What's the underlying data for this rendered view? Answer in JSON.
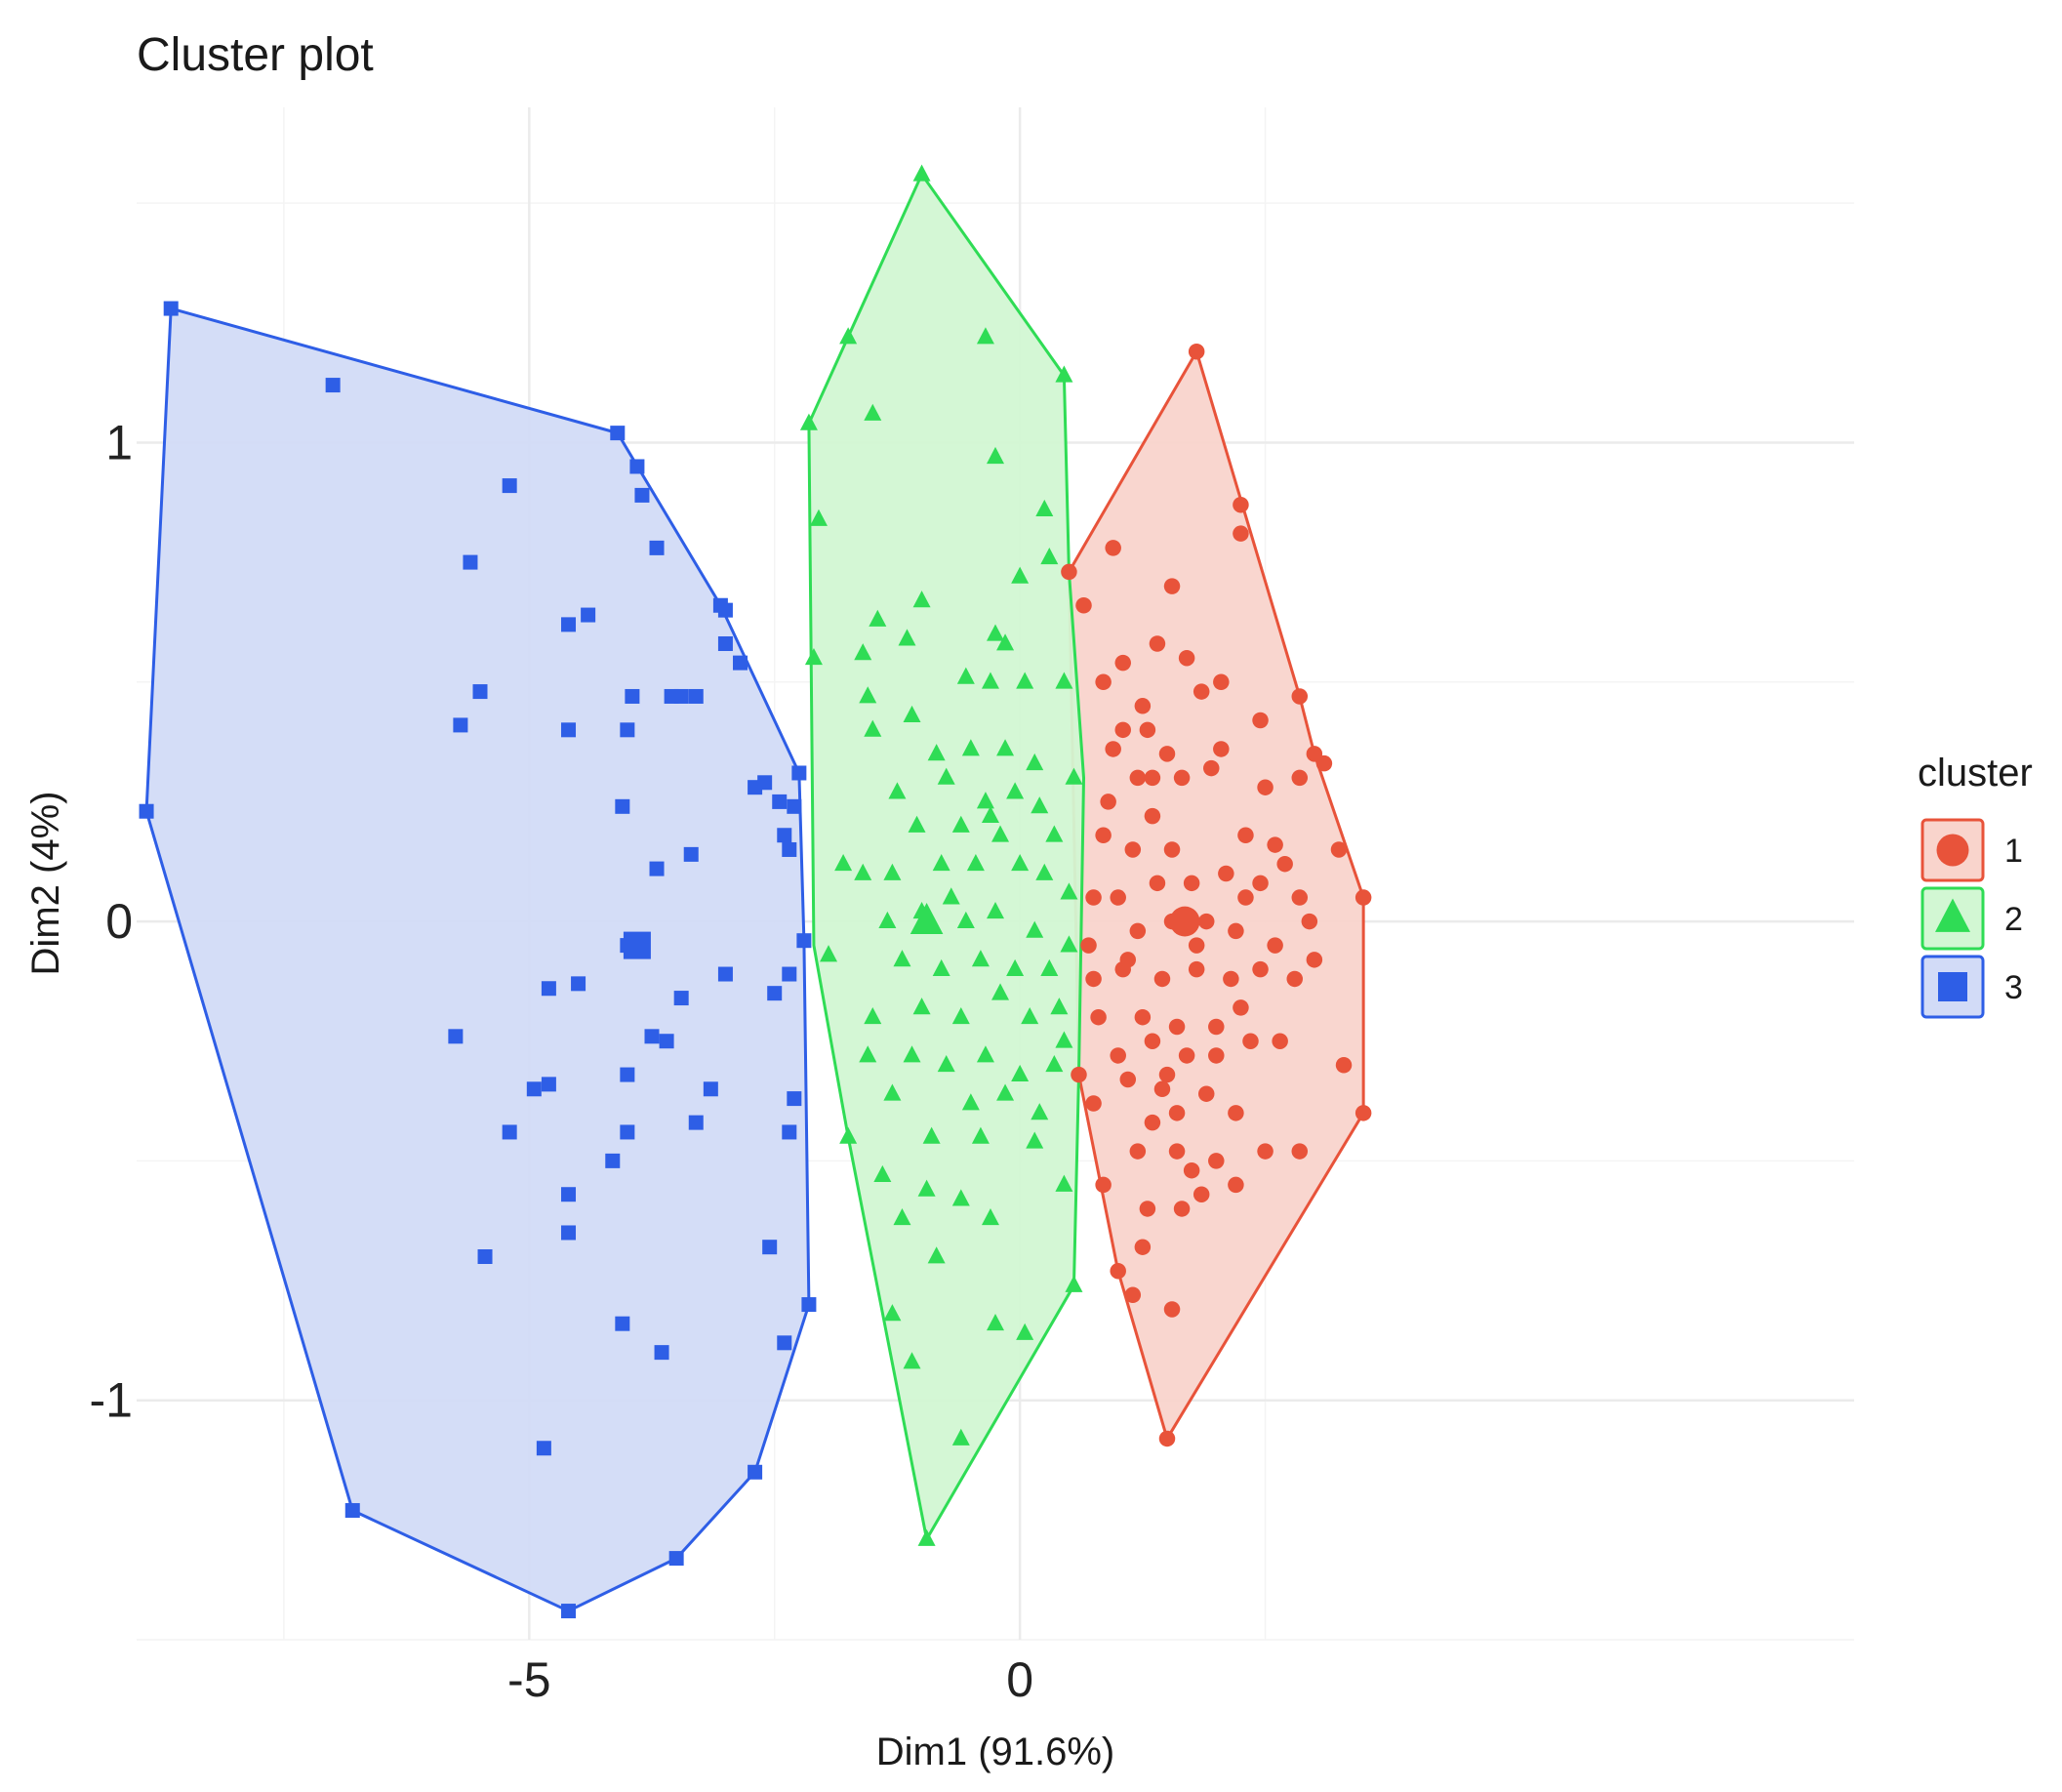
{
  "chart_data": {
    "type": "scatter",
    "title": "Cluster plot",
    "xlabel": "Dim1 (91.6%)",
    "ylabel": "Dim2 (4%)",
    "xlim": [
      -9,
      8.5
    ],
    "ylim": [
      -1.5,
      1.7
    ],
    "x_ticks": [
      {
        "value": -5,
        "label": "-5"
      },
      {
        "value": 0,
        "label": "0"
      }
    ],
    "y_ticks": [
      {
        "value": 1,
        "label": "1"
      },
      {
        "value": 0,
        "label": "0"
      },
      {
        "value": -1,
        "label": "-1"
      }
    ],
    "x_minor_ticks": [
      -7.5,
      -2.5,
      2.5
    ],
    "y_minor_ticks": [
      1.5,
      0.5,
      -0.5,
      -1.5
    ],
    "grid": true,
    "legend_position": "right",
    "legend_title": "cluster",
    "series": [
      {
        "name": "1",
        "shape": "circle",
        "color": "#f8766d",
        "stroke": "#e8533a",
        "fill": "#f9d4cc",
        "centroid": [
          1.68,
          0.0
        ],
        "hull": [
          [
            1.8,
            1.19
          ],
          [
            2.85,
            0.47
          ],
          [
            3.0,
            0.35
          ],
          [
            3.5,
            0.05
          ],
          [
            3.5,
            -0.4
          ],
          [
            1.5,
            -1.08
          ],
          [
            1.0,
            -0.73
          ],
          [
            0.6,
            -0.32
          ],
          [
            0.5,
            0.73
          ]
        ],
        "points": [
          [
            1.8,
            1.19
          ],
          [
            2.25,
            0.87
          ],
          [
            2.25,
            0.81
          ],
          [
            2.85,
            0.47
          ],
          [
            3.0,
            0.35
          ],
          [
            3.5,
            0.05
          ],
          [
            3.5,
            -0.4
          ],
          [
            1.5,
            -1.08
          ],
          [
            1.0,
            -0.73
          ],
          [
            0.6,
            -0.32
          ],
          [
            0.5,
            0.73
          ],
          [
            0.95,
            0.78
          ],
          [
            1.55,
            0.7
          ],
          [
            0.65,
            0.66
          ],
          [
            1.05,
            0.54
          ],
          [
            1.4,
            0.58
          ],
          [
            1.7,
            0.55
          ],
          [
            2.05,
            0.5
          ],
          [
            1.85,
            0.48
          ],
          [
            1.25,
            0.45
          ],
          [
            0.85,
            0.5
          ],
          [
            1.3,
            0.4
          ],
          [
            1.05,
            0.4
          ],
          [
            0.95,
            0.36
          ],
          [
            1.5,
            0.35
          ],
          [
            2.05,
            0.36
          ],
          [
            2.45,
            0.42
          ],
          [
            1.2,
            0.3
          ],
          [
            1.65,
            0.3
          ],
          [
            1.95,
            0.32
          ],
          [
            0.9,
            0.25
          ],
          [
            1.35,
            0.22
          ],
          [
            2.5,
            0.28
          ],
          [
            2.85,
            0.3
          ],
          [
            3.1,
            0.33
          ],
          [
            3.25,
            0.15
          ],
          [
            0.85,
            0.18
          ],
          [
            1.15,
            0.15
          ],
          [
            1.55,
            0.15
          ],
          [
            2.3,
            0.18
          ],
          [
            2.6,
            0.16
          ],
          [
            0.75,
            0.05
          ],
          [
            1.0,
            0.05
          ],
          [
            1.4,
            0.08
          ],
          [
            1.75,
            0.08
          ],
          [
            2.1,
            0.1
          ],
          [
            2.45,
            0.08
          ],
          [
            2.85,
            0.05
          ],
          [
            0.7,
            -0.05
          ],
          [
            1.2,
            -0.02
          ],
          [
            1.55,
            0.0
          ],
          [
            1.9,
            0.0
          ],
          [
            2.2,
            -0.02
          ],
          [
            2.6,
            -0.05
          ],
          [
            2.95,
            0.0
          ],
          [
            0.75,
            -0.12
          ],
          [
            1.05,
            -0.1
          ],
          [
            1.45,
            -0.12
          ],
          [
            1.8,
            -0.1
          ],
          [
            2.15,
            -0.12
          ],
          [
            2.45,
            -0.1
          ],
          [
            2.8,
            -0.12
          ],
          [
            3.0,
            -0.08
          ],
          [
            0.8,
            -0.2
          ],
          [
            1.25,
            -0.2
          ],
          [
            1.6,
            -0.22
          ],
          [
            2.0,
            -0.22
          ],
          [
            2.25,
            -0.18
          ],
          [
            1.0,
            -0.28
          ],
          [
            1.35,
            -0.25
          ],
          [
            1.7,
            -0.28
          ],
          [
            2.0,
            -0.28
          ],
          [
            2.35,
            -0.25
          ],
          [
            2.65,
            -0.25
          ],
          [
            1.1,
            -0.33
          ],
          [
            1.5,
            -0.32
          ],
          [
            1.9,
            -0.36
          ],
          [
            0.75,
            -0.38
          ],
          [
            1.35,
            -0.42
          ],
          [
            1.6,
            -0.4
          ],
          [
            2.2,
            -0.4
          ],
          [
            3.3,
            -0.3
          ],
          [
            1.2,
            -0.48
          ],
          [
            1.6,
            -0.48
          ],
          [
            1.75,
            -0.52
          ],
          [
            2.0,
            -0.5
          ],
          [
            0.85,
            -0.55
          ],
          [
            1.3,
            -0.6
          ],
          [
            1.85,
            -0.57
          ],
          [
            2.2,
            -0.55
          ],
          [
            1.25,
            -0.68
          ],
          [
            1.65,
            -0.6
          ],
          [
            2.5,
            -0.48
          ],
          [
            1.15,
            -0.78
          ],
          [
            1.55,
            -0.81
          ],
          [
            2.85,
            -0.48
          ],
          [
            1.45,
            -0.35
          ],
          [
            1.8,
            -0.05
          ],
          [
            2.3,
            0.05
          ],
          [
            1.1,
            -0.08
          ],
          [
            1.35,
            0.3
          ],
          [
            2.7,
            0.12
          ],
          [
            1.68,
            0.0
          ]
        ]
      },
      {
        "name": "2",
        "shape": "triangle",
        "color": "#00ba38",
        "stroke": "#2fdc55",
        "fill": "#d2f7d3",
        "centroid": [
          -0.95,
          0.0
        ],
        "hull": [
          [
            -2.15,
            1.04
          ],
          [
            -1.0,
            1.56
          ],
          [
            0.45,
            1.14
          ],
          [
            0.5,
            0.73
          ],
          [
            0.65,
            0.3
          ],
          [
            0.6,
            -0.32
          ],
          [
            0.55,
            -0.76
          ],
          [
            -0.95,
            -1.29
          ],
          [
            -1.75,
            -0.45
          ],
          [
            -2.1,
            -0.05
          ]
        ],
        "points": [
          [
            -2.15,
            1.04
          ],
          [
            -1.0,
            1.56
          ],
          [
            0.45,
            1.14
          ],
          [
            -1.75,
            1.22
          ],
          [
            -0.35,
            1.22
          ],
          [
            -1.5,
            1.06
          ],
          [
            -0.25,
            0.97
          ],
          [
            -2.05,
            0.84
          ],
          [
            0.25,
            0.86
          ],
          [
            0.3,
            0.76
          ],
          [
            0.0,
            0.72
          ],
          [
            -1.0,
            0.67
          ],
          [
            -1.45,
            0.63
          ],
          [
            -1.15,
            0.59
          ],
          [
            -0.25,
            0.6
          ],
          [
            -0.15,
            0.58
          ],
          [
            -2.1,
            0.55
          ],
          [
            -1.6,
            0.56
          ],
          [
            -0.55,
            0.51
          ],
          [
            -0.3,
            0.5
          ],
          [
            0.05,
            0.5
          ],
          [
            0.45,
            0.5
          ],
          [
            -1.55,
            0.47
          ],
          [
            -1.1,
            0.43
          ],
          [
            -1.5,
            0.4
          ],
          [
            -0.85,
            0.35
          ],
          [
            -0.5,
            0.36
          ],
          [
            -0.15,
            0.36
          ],
          [
            0.15,
            0.33
          ],
          [
            0.55,
            0.3
          ],
          [
            -1.25,
            0.27
          ],
          [
            -0.75,
            0.3
          ],
          [
            -0.35,
            0.25
          ],
          [
            -0.05,
            0.27
          ],
          [
            0.2,
            0.24
          ],
          [
            -1.05,
            0.2
          ],
          [
            -0.6,
            0.2
          ],
          [
            -0.2,
            0.18
          ],
          [
            0.35,
            0.18
          ],
          [
            -1.8,
            0.12
          ],
          [
            -1.6,
            0.1
          ],
          [
            -1.3,
            0.1
          ],
          [
            -0.8,
            0.12
          ],
          [
            -0.45,
            0.12
          ],
          [
            0.0,
            0.12
          ],
          [
            0.25,
            0.1
          ],
          [
            0.5,
            0.06
          ],
          [
            -1.35,
            0.0
          ],
          [
            -1.0,
            0.02
          ],
          [
            -0.55,
            0.0
          ],
          [
            -0.25,
            0.02
          ],
          [
            0.15,
            -0.02
          ],
          [
            0.5,
            -0.05
          ],
          [
            -1.95,
            -0.07
          ],
          [
            -1.2,
            -0.08
          ],
          [
            -0.8,
            -0.1
          ],
          [
            -0.4,
            -0.08
          ],
          [
            -0.05,
            -0.1
          ],
          [
            0.3,
            -0.1
          ],
          [
            -1.5,
            -0.2
          ],
          [
            -1.0,
            -0.18
          ],
          [
            -0.6,
            -0.2
          ],
          [
            -0.2,
            -0.15
          ],
          [
            0.1,
            -0.2
          ],
          [
            0.4,
            -0.18
          ],
          [
            -1.55,
            -0.28
          ],
          [
            -1.1,
            -0.28
          ],
          [
            -0.75,
            -0.3
          ],
          [
            -0.35,
            -0.28
          ],
          [
            0.0,
            -0.32
          ],
          [
            0.35,
            -0.3
          ],
          [
            -1.3,
            -0.36
          ],
          [
            -0.5,
            -0.38
          ],
          [
            -0.15,
            -0.36
          ],
          [
            0.2,
            -0.4
          ],
          [
            -1.75,
            -0.45
          ],
          [
            -0.9,
            -0.45
          ],
          [
            -0.4,
            -0.45
          ],
          [
            0.15,
            -0.46
          ],
          [
            -1.4,
            -0.53
          ],
          [
            -0.95,
            -0.56
          ],
          [
            -0.6,
            -0.58
          ],
          [
            0.45,
            -0.55
          ],
          [
            -1.2,
            -0.62
          ],
          [
            -0.3,
            -0.62
          ],
          [
            -0.85,
            -0.7
          ],
          [
            -1.3,
            -0.82
          ],
          [
            -0.25,
            -0.84
          ],
          [
            0.05,
            -0.86
          ],
          [
            -1.1,
            -0.92
          ],
          [
            -0.6,
            -1.08
          ],
          [
            -0.95,
            -1.29
          ],
          [
            0.55,
            -0.76
          ],
          [
            -0.7,
            0.05
          ],
          [
            -0.3,
            0.22
          ],
          [
            0.45,
            -0.25
          ],
          [
            -0.95,
            0.0
          ]
        ]
      },
      {
        "name": "3",
        "shape": "square",
        "color": "#619cff",
        "stroke": "#2e5ee6",
        "fill": "#d2dbf7",
        "centroid": [
          -3.9,
          -0.05
        ],
        "hull": [
          [
            -8.65,
            1.28
          ],
          [
            -4.1,
            1.02
          ],
          [
            -3.05,
            0.66
          ],
          [
            -2.25,
            0.31
          ],
          [
            -2.2,
            -0.04
          ],
          [
            -2.15,
            -0.8
          ],
          [
            -2.7,
            -1.15
          ],
          [
            -3.5,
            -1.33
          ],
          [
            -4.6,
            -1.44
          ],
          [
            -6.8,
            -1.23
          ],
          [
            -8.9,
            0.23
          ]
        ],
        "points": [
          [
            -8.65,
            1.28
          ],
          [
            -4.1,
            1.02
          ],
          [
            -3.05,
            0.66
          ],
          [
            -2.25,
            0.31
          ],
          [
            -2.2,
            -0.04
          ],
          [
            -2.15,
            -0.8
          ],
          [
            -2.7,
            -1.15
          ],
          [
            -3.5,
            -1.33
          ],
          [
            -4.6,
            -1.44
          ],
          [
            -6.8,
            -1.23
          ],
          [
            -8.9,
            0.23
          ],
          [
            -7.0,
            1.12
          ],
          [
            -5.2,
            0.91
          ],
          [
            -3.85,
            0.89
          ],
          [
            -3.7,
            0.78
          ],
          [
            -5.6,
            0.75
          ],
          [
            -4.6,
            0.62
          ],
          [
            -4.4,
            0.64
          ],
          [
            -3.0,
            0.58
          ],
          [
            -2.85,
            0.54
          ],
          [
            -5.5,
            0.48
          ],
          [
            -3.95,
            0.47
          ],
          [
            -3.55,
            0.47
          ],
          [
            -3.3,
            0.47
          ],
          [
            -3.45,
            0.47
          ],
          [
            -5.7,
            0.41
          ],
          [
            -4.6,
            0.4
          ],
          [
            -4.0,
            0.4
          ],
          [
            -2.7,
            0.28
          ],
          [
            -2.6,
            0.29
          ],
          [
            -2.45,
            0.25
          ],
          [
            -2.3,
            0.24
          ],
          [
            -4.05,
            0.24
          ],
          [
            -2.4,
            0.18
          ],
          [
            -2.35,
            0.15
          ],
          [
            -3.35,
            0.14
          ],
          [
            -3.7,
            0.11
          ],
          [
            -4.0,
            -0.05
          ],
          [
            -3.0,
            -0.11
          ],
          [
            -2.35,
            -0.11
          ],
          [
            -4.8,
            -0.14
          ],
          [
            -4.5,
            -0.13
          ],
          [
            -3.45,
            -0.16
          ],
          [
            -2.5,
            -0.15
          ],
          [
            -5.75,
            -0.24
          ],
          [
            -3.75,
            -0.24
          ],
          [
            -3.6,
            -0.25
          ],
          [
            -4.0,
            -0.32
          ],
          [
            -4.8,
            -0.34
          ],
          [
            -4.95,
            -0.35
          ],
          [
            -3.15,
            -0.35
          ],
          [
            -2.3,
            -0.37
          ],
          [
            -3.3,
            -0.42
          ],
          [
            -5.2,
            -0.44
          ],
          [
            -4.0,
            -0.44
          ],
          [
            -2.35,
            -0.44
          ],
          [
            -4.15,
            -0.5
          ],
          [
            -4.6,
            -0.57
          ],
          [
            -4.6,
            -0.65
          ],
          [
            -5.45,
            -0.7
          ],
          [
            -2.55,
            -0.68
          ],
          [
            -4.05,
            -0.84
          ],
          [
            -2.4,
            -0.88
          ],
          [
            -3.65,
            -0.9
          ],
          [
            -4.85,
            -1.1
          ],
          [
            -3.9,
            0.95
          ],
          [
            -3.0,
            0.65
          ]
        ]
      }
    ]
  }
}
